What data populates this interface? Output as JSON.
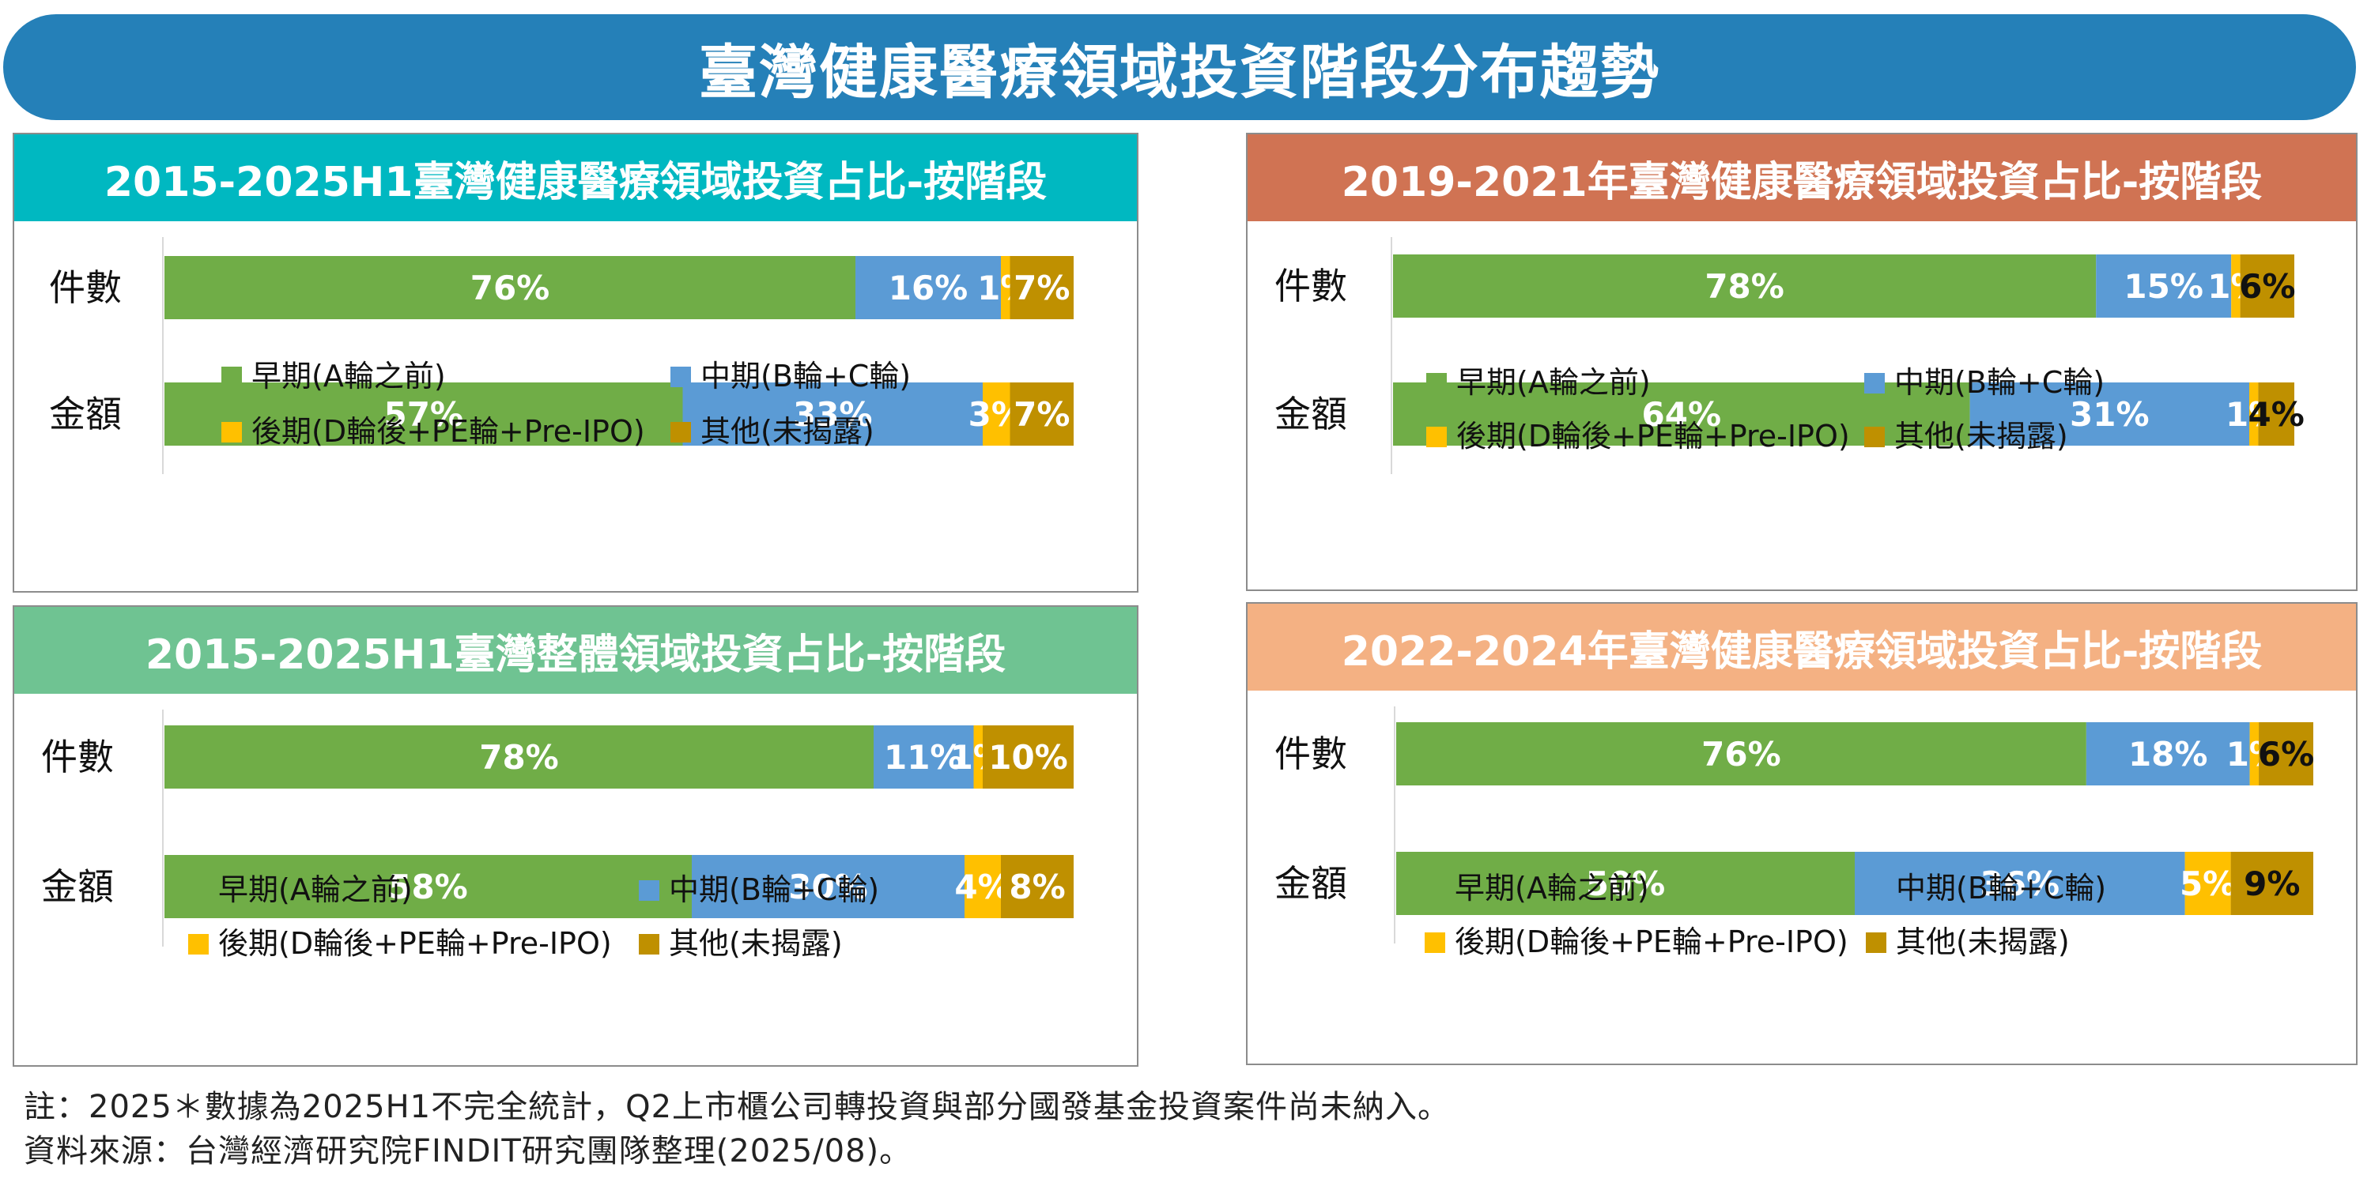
{
  "main_title": "臺灣健康醫療領域投資階段分布趨勢",
  "colors": {
    "title_bar": "#2580b8",
    "early": "#70ad47",
    "mid": "#5b9bd5",
    "late": "#ffc000",
    "other": "#bf9000"
  },
  "legend": [
    "早期(A輪之前)",
    "中期(B輪+C輪)",
    "後期(D輪後+PE輪+Pre-IPO)",
    "其他(未揭露)"
  ],
  "chart_data": [
    {
      "type": "bar",
      "orientation": "horizontal-stacked-100",
      "title": "2015-2025H1臺灣健康醫療領域投資占比-按階段",
      "header_color": "#00b8c1",
      "categories": [
        "件數",
        "金額"
      ],
      "series": [
        {
          "name": "早期(A輪之前)",
          "values": [
            76,
            57
          ]
        },
        {
          "name": "中期(B輪+C輪)",
          "values": [
            16,
            33
          ]
        },
        {
          "name": "後期(D輪後+PE輪+Pre-IPO)",
          "values": [
            1,
            3
          ]
        },
        {
          "name": "其他(未揭露)",
          "values": [
            7,
            7
          ]
        }
      ],
      "label_colors": [
        [
          "#ffffff",
          "#ffffff",
          "#ffffff",
          "#ffffff"
        ],
        [
          "#ffffff",
          "#ffffff",
          "#ffffff",
          "#ffffff"
        ]
      ],
      "legend_position": "bottom"
    },
    {
      "type": "bar",
      "orientation": "horizontal-stacked-100",
      "title": "2019-2021年臺灣健康醫療領域投資占比-按階段",
      "header_color": "#d07353",
      "categories": [
        "件數",
        "金額"
      ],
      "series": [
        {
          "name": "早期(A輪之前)",
          "values": [
            78,
            64
          ]
        },
        {
          "name": "中期(B輪+C輪)",
          "values": [
            15,
            31
          ]
        },
        {
          "name": "後期(D輪後+PE輪+Pre-IPO)",
          "values": [
            1,
            1
          ]
        },
        {
          "name": "其他(未揭露)",
          "values": [
            6,
            4
          ]
        }
      ],
      "label_colors": [
        [
          "#ffffff",
          "#ffffff",
          "#ffffff",
          "#111111"
        ],
        [
          "#ffffff",
          "#ffffff",
          "#ffffff",
          "#111111"
        ]
      ],
      "legend_position": "bottom"
    },
    {
      "type": "bar",
      "orientation": "horizontal-stacked-100",
      "title": "2015-2025H1臺灣整體領域投資占比-按階段",
      "header_color": "#6fc392",
      "categories": [
        "件數",
        "金額"
      ],
      "series": [
        {
          "name": "早期(A輪之前)",
          "values": [
            78,
            58
          ]
        },
        {
          "name": "中期(B輪+C輪)",
          "values": [
            11,
            30
          ]
        },
        {
          "name": "後期(D輪後+PE輪+Pre-IPO)",
          "values": [
            1,
            4
          ]
        },
        {
          "name": "其他(未揭露)",
          "values": [
            10,
            8
          ]
        }
      ],
      "label_colors": [
        [
          "#ffffff",
          "#ffffff",
          "#ffffff",
          "#ffffff"
        ],
        [
          "#ffffff",
          "#ffffff",
          "#ffffff",
          "#ffffff"
        ]
      ],
      "legend_position": "bottom"
    },
    {
      "type": "bar",
      "orientation": "horizontal-stacked-100",
      "title": "2022-2024年臺灣健康醫療領域投資占比-按階段",
      "header_color": "#f4b183",
      "categories": [
        "件數",
        "金額"
      ],
      "series": [
        {
          "name": "早期(A輪之前)",
          "values": [
            76,
            50
          ]
        },
        {
          "name": "中期(B輪+C輪)",
          "values": [
            18,
            36
          ]
        },
        {
          "name": "後期(D輪後+PE輪+Pre-IPO)",
          "values": [
            1,
            5
          ]
        },
        {
          "name": "其他(未揭露)",
          "values": [
            6,
            9
          ]
        }
      ],
      "label_colors": [
        [
          "#ffffff",
          "#ffffff",
          "#ffffff",
          "#111111"
        ],
        [
          "#ffffff",
          "#ffffff",
          "#ffffff",
          "#111111"
        ]
      ],
      "legend_position": "bottom"
    }
  ],
  "footnotes": {
    "note": "註：2025＊數據為2025H1不完全統計，Q2上市櫃公司轉投資與部分國發基金投資案件尚未納入。",
    "source": "資料來源：台灣經濟研究院FINDIT研究團隊整理(2025/08)。"
  }
}
